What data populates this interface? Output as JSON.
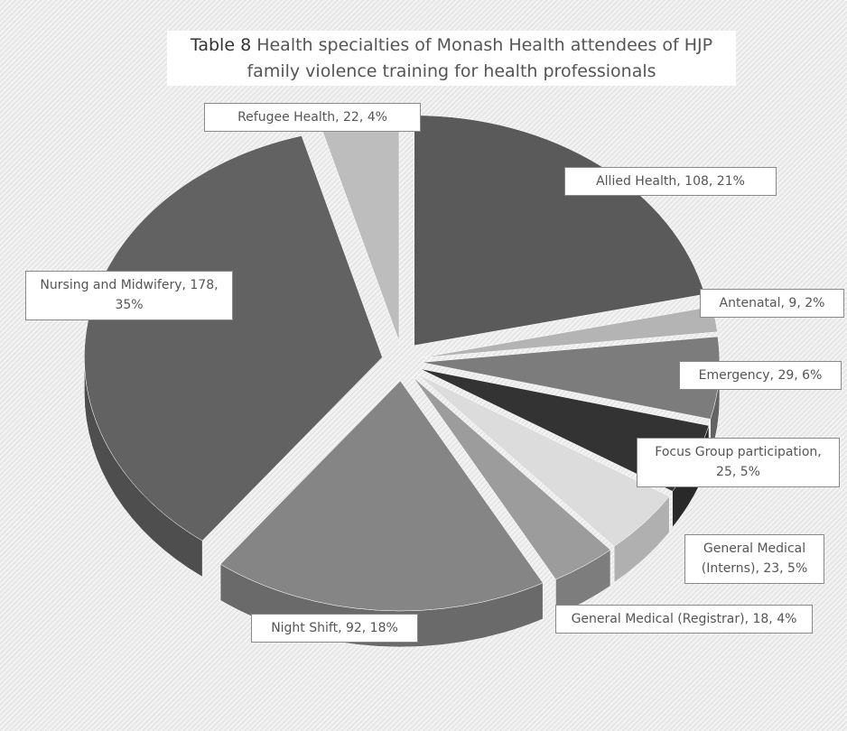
{
  "chart_data": {
    "type": "pie",
    "title_label": "Table 8",
    "title": "Health specialties of Monash Health attendees of HJP family violence training for health professionals",
    "values": [
      108,
      9,
      29,
      25,
      23,
      18,
      92,
      178,
      22
    ],
    "value_labels": [
      "Allied Health, 108, 21%",
      "Antenatal, 9, 2%",
      "Emergency, 29, 6%",
      "Focus Group participation, 25, 5%",
      "General Medical (Interns), 23, 5%",
      "General Medical (Registrar), 18, 4%",
      "Night Shift, 92, 18%",
      "Nursing and Midwifery, 178, 35%",
      "Refugee Health, 22, 4%"
    ],
    "colors": [
      "#5a5a5a",
      "#b4b4b4",
      "#7c7c7c",
      "#333333",
      "#dcdcdc",
      "#9c9c9c",
      "#858585",
      "#626262",
      "#bdbdbd"
    ]
  }
}
